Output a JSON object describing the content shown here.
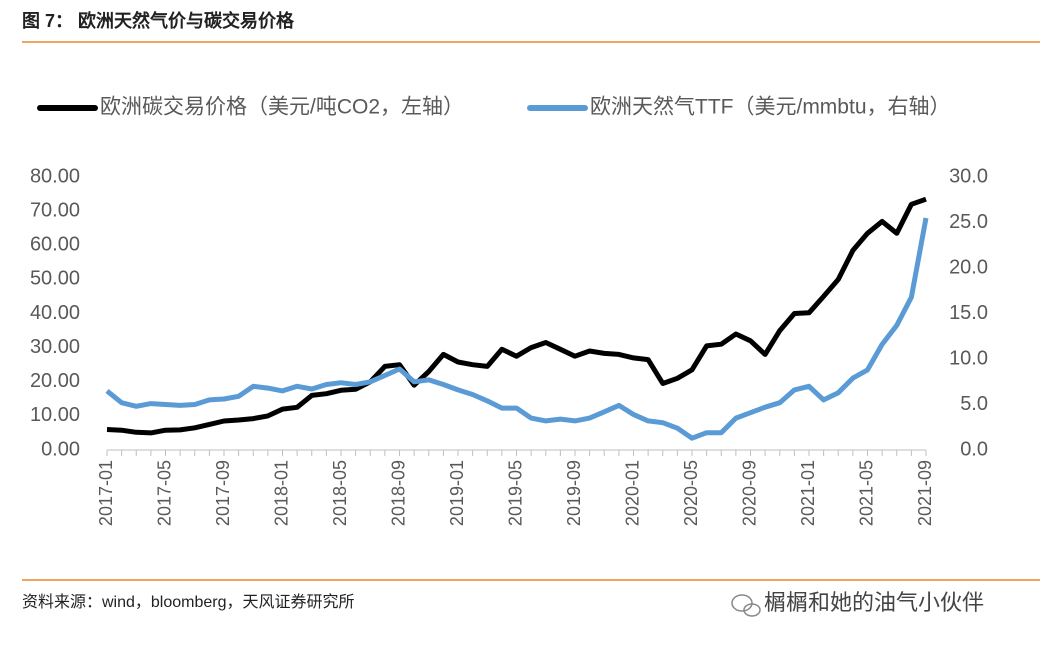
{
  "chart_data": {
    "type": "line",
    "title": "图 7：  欧洲天然气价与碳交易价格",
    "source": "资料来源：wind，bloomberg，天风证券研究所",
    "watermark": "榍榍和她的油气小伙伴",
    "categories": [
      "2017-01",
      null,
      null,
      null,
      "2017-05",
      null,
      null,
      null,
      "2017-09",
      null,
      null,
      null,
      "2018-01",
      null,
      null,
      null,
      "2018-05",
      null,
      null,
      null,
      "2018-09",
      null,
      null,
      null,
      "2019-01",
      null,
      null,
      null,
      "2019-05",
      null,
      null,
      null,
      "2019-09",
      null,
      null,
      null,
      "2020-01",
      null,
      null,
      null,
      "2020-05",
      null,
      null,
      null,
      "2020-09",
      null,
      null,
      null,
      "2021-01",
      null,
      null,
      null,
      "2021-05",
      null,
      null,
      null,
      "2021-09"
    ],
    "series": [
      {
        "name": "欧洲碳交易价格（美元/吨CO2，左轴）",
        "color": "#000000",
        "axis": "y",
        "values": [
          6.0,
          5.8,
          5.2,
          5.0,
          5.8,
          5.9,
          6.5,
          7.5,
          8.5,
          8.8,
          9.2,
          10.0,
          12.0,
          12.5,
          16,
          16.5,
          17.5,
          17.8,
          20,
          24.5,
          25,
          19,
          23,
          28,
          25.8,
          25,
          24.5,
          29.5,
          27.5,
          30,
          31.5,
          29.5,
          27.5,
          29,
          28.3,
          28,
          27,
          26.5,
          19.5,
          21,
          23.5,
          30.5,
          31,
          34,
          32,
          28,
          35,
          40,
          40.2,
          45,
          50,
          58.5,
          63.5,
          67,
          63.5,
          72,
          73.5
        ]
      },
      {
        "name": "欧洲天然气TTF（美元/mmbtu，右轴）",
        "color": "#5b9bd5",
        "axis": "y2",
        "values": [
          6.5,
          5.2,
          4.8,
          5.1,
          5.0,
          4.9,
          5.0,
          5.5,
          5.6,
          5.9,
          7.0,
          6.8,
          6.5,
          7.0,
          6.7,
          7.2,
          7.4,
          7.2,
          7.5,
          8.2,
          8.9,
          7.5,
          7.7,
          7.2,
          6.6,
          6.1,
          5.4,
          4.6,
          4.6,
          3.5,
          3.2,
          3.4,
          3.2,
          3.5,
          4.2,
          4.9,
          3.9,
          3.2,
          3.0,
          2.4,
          1.3,
          1.9,
          1.9,
          3.5,
          4.1,
          4.7,
          5.2,
          6.6,
          7.0,
          5.5,
          6.3,
          7.9,
          8.8,
          11.6,
          13.7,
          16.8,
          25.5
        ]
      }
    ],
    "ylim": [
      0,
      80
    ],
    "yticks": [
      {
        "value": 0,
        "label": "0.00"
      },
      {
        "value": 10,
        "label": "10.00"
      },
      {
        "value": 20,
        "label": "20.00"
      },
      {
        "value": 30,
        "label": "30.00"
      },
      {
        "value": 40,
        "label": "40.00"
      },
      {
        "value": 50,
        "label": "50.00"
      },
      {
        "value": 60,
        "label": "60.00"
      },
      {
        "value": 70,
        "label": "70.00"
      },
      {
        "value": 80,
        "label": "80.00"
      }
    ],
    "y2lim": [
      0,
      30
    ],
    "y2ticks": [
      {
        "value": 0,
        "label": "0.0"
      },
      {
        "value": 5,
        "label": "5.0"
      },
      {
        "value": 10,
        "label": "10.0"
      },
      {
        "value": 15,
        "label": "15.0"
      },
      {
        "value": 20,
        "label": "20.0"
      },
      {
        "value": 25,
        "label": "25.0"
      },
      {
        "value": 30,
        "label": "30.0"
      }
    ],
    "legend": "top",
    "grid": false
  }
}
